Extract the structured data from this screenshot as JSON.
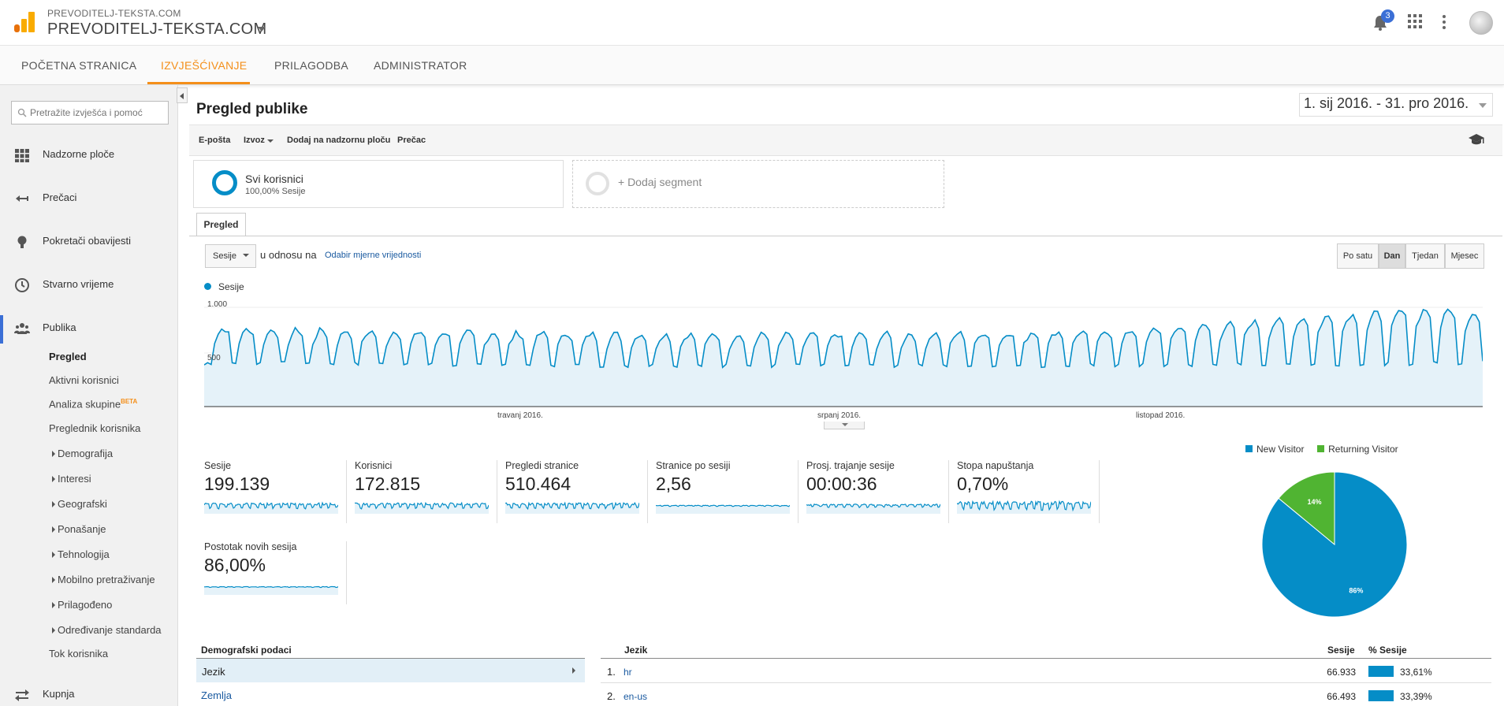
{
  "header": {
    "account_small": "PREVODITELJ-TEKSTA.COM",
    "account_main": "PREVODITELJ-TEKSTA.COM",
    "notification_count": "3",
    "accent_color": "#f48f1a",
    "icons": [
      "analytics-logo-icon",
      "bell-icon",
      "apps-grid-icon",
      "more-vert-icon",
      "avatar"
    ]
  },
  "nav": {
    "tabs": [
      "POČETNA STRANICA",
      "IZVJEŠĆIVANJE",
      "PRILAGODBA",
      "ADMINISTRATOR"
    ],
    "active": "IZVJEŠĆIVANJE"
  },
  "sidebar": {
    "search_placeholder": "Pretražite izvješća i pomoć",
    "items": [
      {
        "label": "Nadzorne ploče",
        "icon": "dashboard-grid-icon"
      },
      {
        "label": "Prečaci",
        "icon": "shortcut-arrow-icon"
      },
      {
        "label": "Pokretači obavijesti",
        "icon": "lightbulb-icon"
      },
      {
        "label": "Stvarno vrijeme",
        "icon": "clock-icon"
      },
      {
        "label": "Publika",
        "icon": "people-icon"
      }
    ],
    "sub_items": [
      "Pregled",
      "Aktivni korisnici",
      "Analiza skupine",
      "Preglednik korisnika",
      "Demografija",
      "Interesi",
      "Geografski",
      "Ponašanje",
      "Tehnologija",
      "Mobilno pretraživanje",
      "Prilagođeno",
      "Određivanje standarda",
      "Tok korisnika"
    ],
    "beta_label": "BETA",
    "bottom_item": {
      "label": "Kupnja",
      "icon": "swap-arrows-icon"
    }
  },
  "main": {
    "title": "Pregled publike",
    "date_range": "1. sij 2016. - 31. pro 2016.",
    "toolbar": {
      "email": "E-pošta",
      "export": "Izvoz",
      "add_dashboard": "Dodaj na nadzornu ploču",
      "shortcut": "Prečac"
    },
    "segments": {
      "seg1_title": "Svi korisnici",
      "seg1_sub": "100,00% Sesije",
      "add_segment": "+ Dodaj segment"
    },
    "tab": "Pregled",
    "metric": "Sesije",
    "vs_text": "u odnosu na",
    "pick_metric": "Odabir mjerne vrijednosti",
    "granularity": [
      "Po satu",
      "Dan",
      "Tjedan",
      "Mjesec"
    ],
    "granularity_active": "Dan"
  },
  "chart_data": {
    "type": "area",
    "series": [
      {
        "name": "Sesije",
        "color": "#058dc7"
      }
    ],
    "y_ticks": [
      "1.000",
      "500"
    ],
    "ylim": [
      0,
      1000
    ],
    "x_tick_labels": [
      "travanj 2016.",
      "srpanj 2016.",
      "listopad 2016."
    ],
    "x_range": [
      "2016-01-01",
      "2016-12-31"
    ],
    "weekly_pattern": "weekday peaks ~700-900, weekend troughs ~400-450, rising toward Nov-Dec to ~950-1000"
  },
  "scorecards": [
    {
      "label": "Sesije",
      "value": "199.139"
    },
    {
      "label": "Korisnici",
      "value": "172.815"
    },
    {
      "label": "Pregledi stranice",
      "value": "510.464"
    },
    {
      "label": "Stranice po sesiji",
      "value": "2,56"
    },
    {
      "label": "Prosj. trajanje sesije",
      "value": "00:00:36"
    },
    {
      "label": "Stopa napuštanja",
      "value": "0,70%"
    },
    {
      "label": "Postotak novih sesija",
      "value": "86,00%"
    }
  ],
  "pie": {
    "legend": [
      {
        "name": "New Visitor",
        "color": "#058dc7"
      },
      {
        "name": "Returning Visitor",
        "color": "#50b432"
      }
    ],
    "slices": [
      {
        "name": "New Visitor",
        "value": 86,
        "label": "86%"
      },
      {
        "name": "Returning Visitor",
        "value": 14,
        "label": "14%"
      }
    ]
  },
  "demographics": {
    "header": "Demografski podaci",
    "rows": [
      "Jezik",
      "Zemlja"
    ]
  },
  "language_table": {
    "headers": [
      "Jezik",
      "Sesije",
      "% Sesije"
    ],
    "rows": [
      {
        "rank": "1.",
        "name": "hr",
        "sessions": "66.933",
        "pct": "33,61%",
        "pct_value": 33.61
      },
      {
        "rank": "2.",
        "name": "en-us",
        "sessions": "66.493",
        "pct": "33,39%",
        "pct_value": 33.39
      }
    ]
  }
}
